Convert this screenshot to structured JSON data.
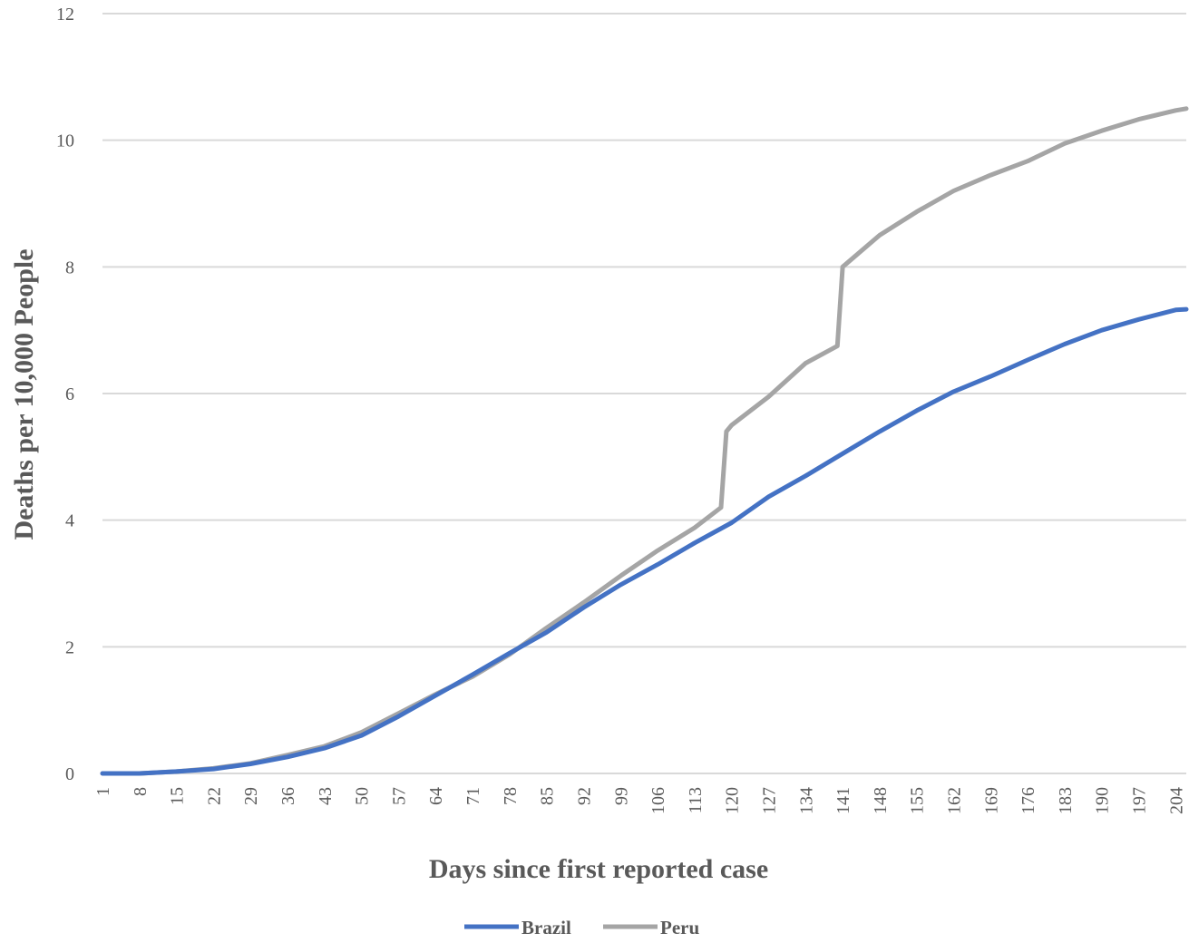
{
  "chart_data": {
    "type": "line",
    "title": "",
    "xlabel": "Days since first reported case",
    "ylabel": "Deaths per 10,000 People",
    "ylim": [
      0,
      12
    ],
    "xlim": [
      1,
      206
    ],
    "yticks": [
      0,
      2,
      4,
      6,
      8,
      10,
      12
    ],
    "xticks": [
      1,
      8,
      15,
      22,
      29,
      36,
      43,
      50,
      57,
      64,
      71,
      78,
      85,
      92,
      99,
      106,
      113,
      120,
      127,
      134,
      141,
      148,
      155,
      162,
      169,
      176,
      183,
      190,
      197,
      204
    ],
    "grid": true,
    "legend_position": "bottom",
    "series": [
      {
        "name": "Brazil",
        "color": "#4472c4",
        "x": [
          1,
          8,
          15,
          22,
          29,
          36,
          43,
          50,
          57,
          64,
          71,
          78,
          85,
          92,
          99,
          106,
          113,
          120,
          127,
          134,
          141,
          148,
          155,
          162,
          169,
          176,
          183,
          190,
          197,
          204,
          206
        ],
        "y": [
          0,
          0,
          0.03,
          0.07,
          0.15,
          0.26,
          0.4,
          0.6,
          0.9,
          1.23,
          1.56,
          1.9,
          2.23,
          2.62,
          2.98,
          3.3,
          3.64,
          3.96,
          4.37,
          4.7,
          5.05,
          5.4,
          5.73,
          6.03,
          6.27,
          6.53,
          6.78,
          7.0,
          7.17,
          7.32,
          7.33
        ]
      },
      {
        "name": "Peru",
        "color": "#a5a5a5",
        "x": [
          1,
          8,
          15,
          22,
          29,
          36,
          43,
          50,
          57,
          64,
          71,
          78,
          85,
          92,
          99,
          106,
          113,
          118,
          119,
          120,
          127,
          134,
          140,
          141,
          148,
          155,
          162,
          169,
          176,
          183,
          190,
          197,
          204,
          206
        ],
        "y": [
          0,
          0,
          0.03,
          0.08,
          0.16,
          0.29,
          0.43,
          0.65,
          0.95,
          1.25,
          1.53,
          1.88,
          2.3,
          2.7,
          3.12,
          3.52,
          3.88,
          4.2,
          5.4,
          5.5,
          5.95,
          6.48,
          6.75,
          8.0,
          8.5,
          8.87,
          9.2,
          9.45,
          9.67,
          9.95,
          10.15,
          10.33,
          10.47,
          10.5
        ]
      }
    ]
  }
}
